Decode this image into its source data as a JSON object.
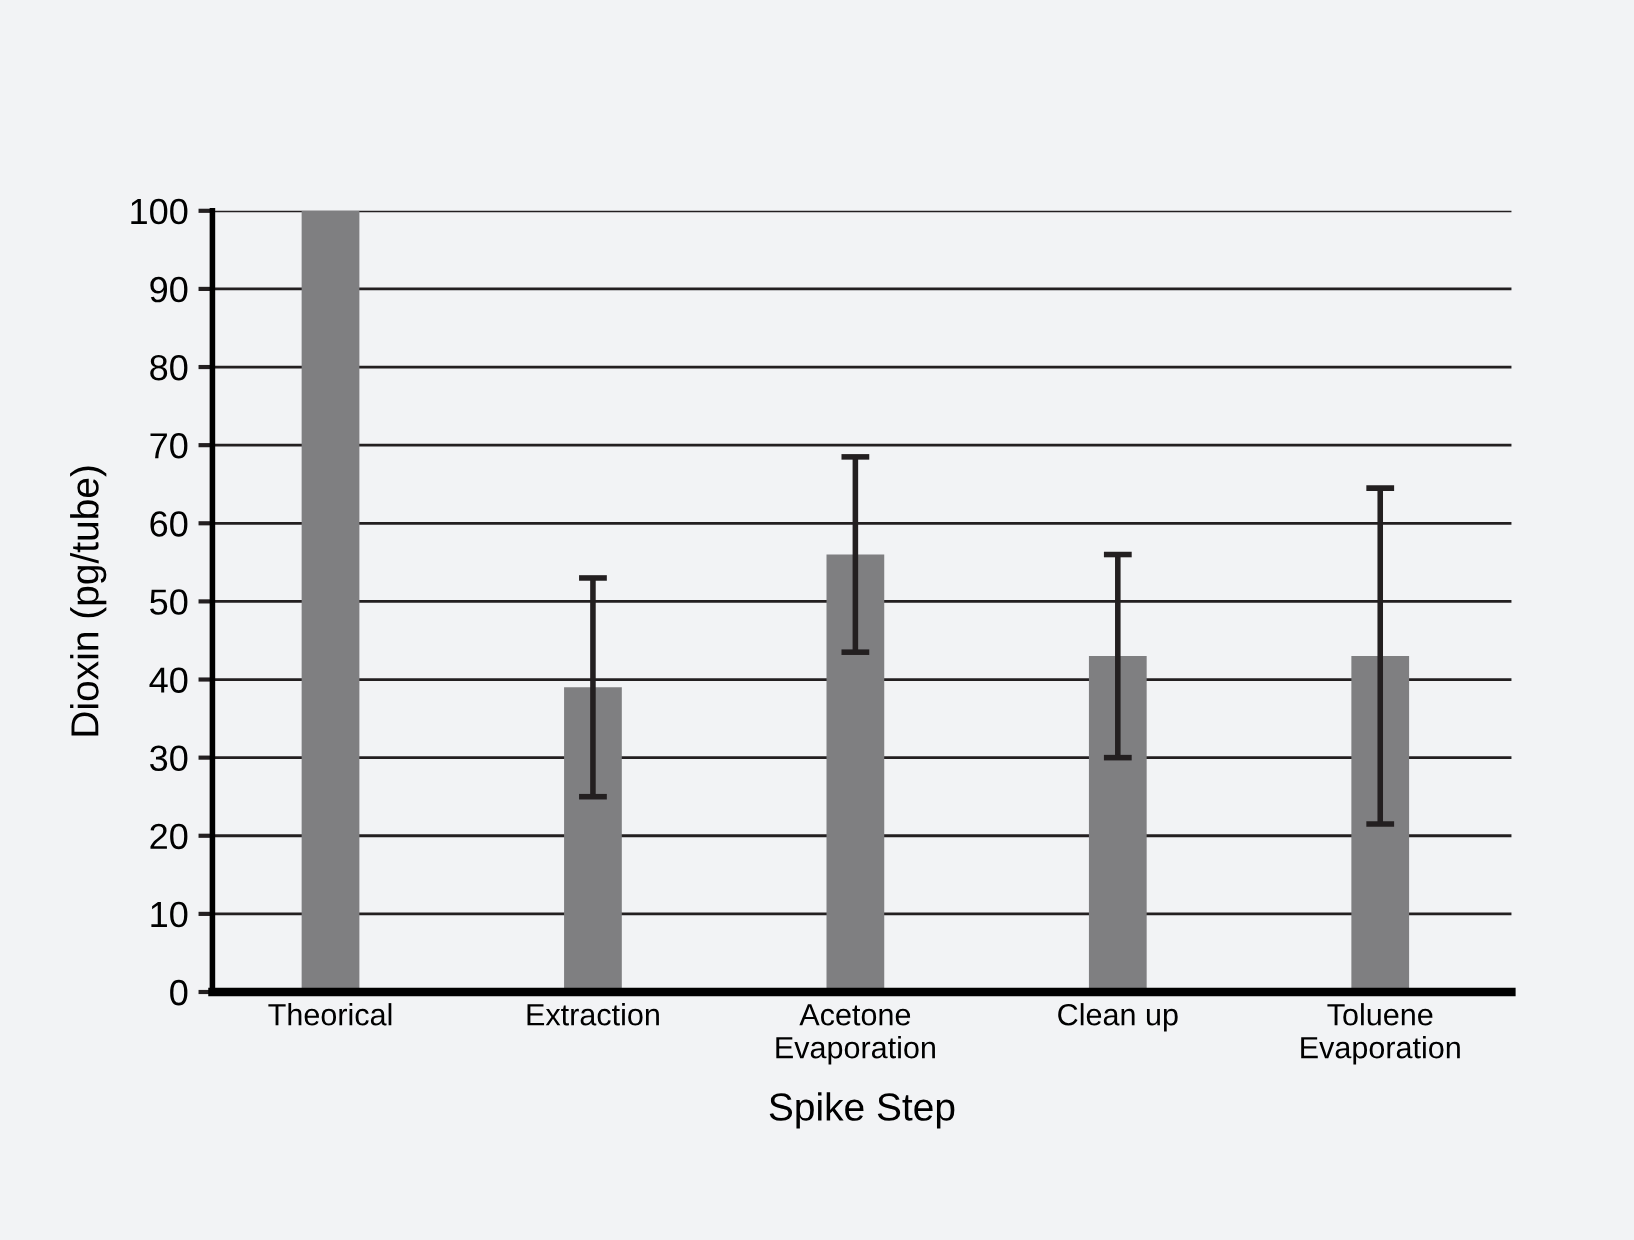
{
  "chart_data": {
    "type": "bar",
    "xlabel": "Spike Step",
    "ylabel": "Dioxin (pg/tube)",
    "categories": [
      "Theorical",
      "Extraction",
      "Acetone\nEvaporation",
      "Clean up",
      "Toluene\nEvaporation"
    ],
    "values": [
      100,
      39,
      56,
      43,
      43
    ],
    "errors": [
      null,
      14,
      12.5,
      13,
      21.5
    ],
    "color": "#7f7f81",
    "ylim": [
      0,
      100
    ],
    "yticks": [
      0,
      10,
      20,
      30,
      40,
      50,
      60,
      70,
      80,
      90,
      100
    ],
    "grid": "y"
  }
}
